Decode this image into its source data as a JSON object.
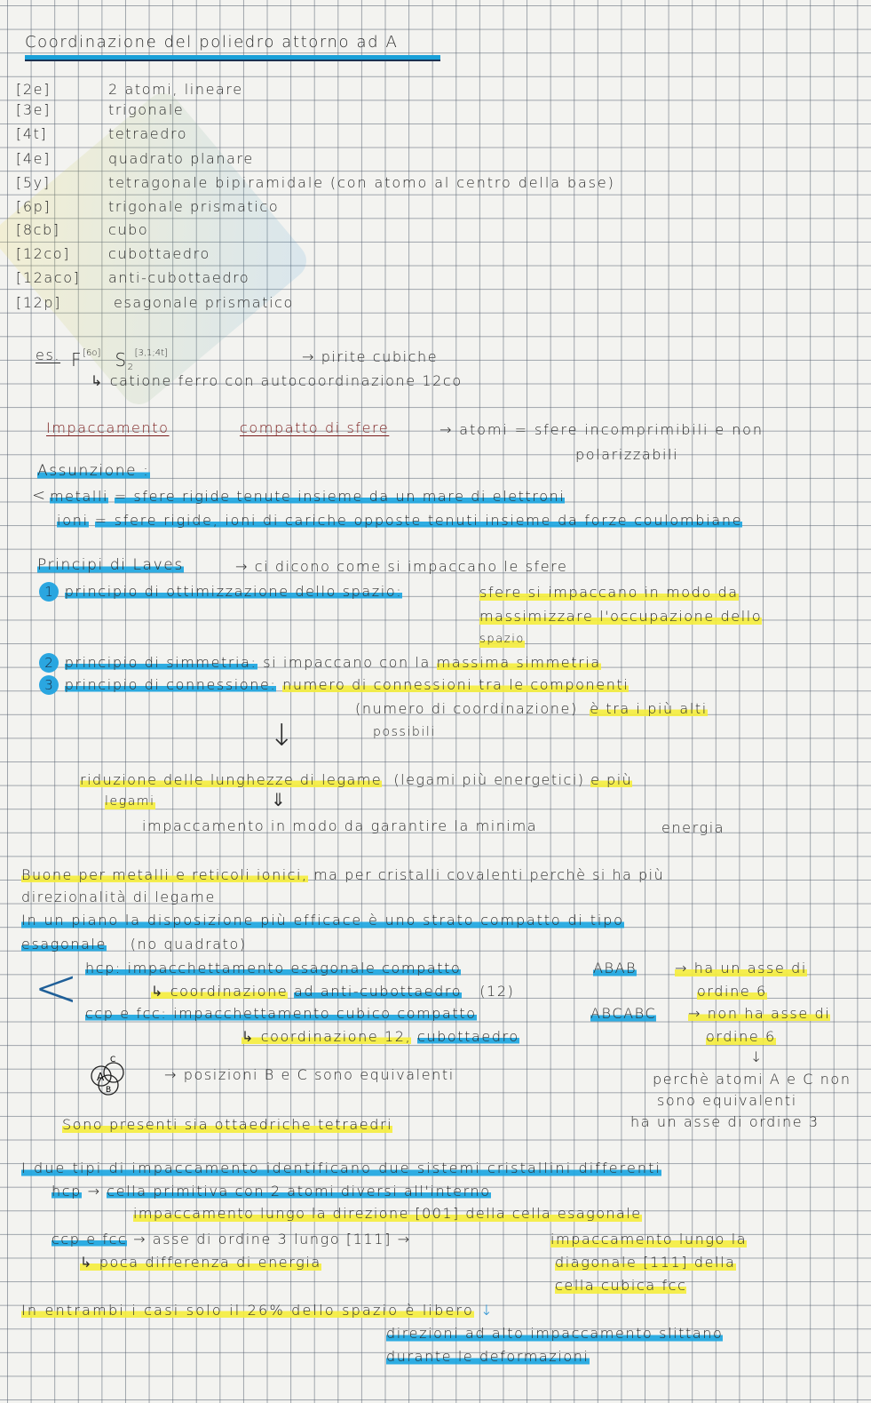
{
  "title": "Coordinazione del poliedro attorno ad A",
  "coordination": [
    {
      "code": "[2e]",
      "desc": "2 atomi, lineare"
    },
    {
      "code": "[3e]",
      "desc": "trigonale"
    },
    {
      "code": "[4t]",
      "desc": "tetraedro"
    },
    {
      "code": "[4e]",
      "desc": "quadrato planare"
    },
    {
      "code": "[5y]",
      "desc": "tetragonale bipiramidale (con atomo al centro della base)"
    },
    {
      "code": "[6p]",
      "desc": "trigonale prismatico"
    },
    {
      "code": "[8cb]",
      "desc": "cubo"
    },
    {
      "code": "[12co]",
      "desc": "cubottaedro"
    },
    {
      "code": "[12aco]",
      "desc": "anti-cubottaedro"
    },
    {
      "code": "[12p]",
      "desc": "esagonale prismatico"
    }
  ],
  "example": {
    "es": "es.",
    "F": "F",
    "F_sup": "[6o]",
    "S": "S",
    "S_sub": "2",
    "S_sup": "[3,1;4t]",
    "arrow": "→ pirite cubiche",
    "note": "↳ catione ferro con autocoordinazione 12co"
  },
  "packing": {
    "a": "Impaccamento",
    "b": "compatto di sfere",
    "c": "→ atomi = sfere incomprimibili e non",
    "d": "polarizzabili"
  },
  "assumption": {
    "title": "Assunzione :",
    "bracket": "<",
    "metalli": "metalli",
    "metalli_rest": "= sfere rigide tenute insieme da un mare di elettroni",
    "ioni": "ioni",
    "ioni_rest": "= sfere rigide, ioni di cariche opposte tenuti insieme da forze coulombiane"
  },
  "laves": {
    "title": "Principi di Laves",
    "intro": "→ ci dicono come si impaccano le sfere",
    "p1_num": "1",
    "p1": "principio di ottimizzazione dello spazio:",
    "p1_a": "sfere si impaccano in modo da",
    "p1_b": "massimizzare l'occupazione dello",
    "p1_c": "spazio",
    "p2_num": "2",
    "p2": "principio di simmetria:",
    "p2_a": "si impaccano con la",
    "p2_b": "massima simmetria",
    "p3_num": "3",
    "p3": "principio di connessione:",
    "p3_a": "numero di connessioni tra le componenti",
    "p3_b": "(numero di coordinazione)",
    "p3_c": "è tra i più alti",
    "p3_d": "possibili",
    "arrow": "↓",
    "r1": "riduzione delle lunghezze di legame",
    "r2": "(legami più energetici)",
    "r3": "e più",
    "r4": "legami",
    "darrow": "⇓",
    "r5": "impaccamento in modo da garantire la minima",
    "r6": "energia"
  },
  "body": {
    "l1a": "Buone per metalli e reticoli ionici,",
    "l1b": "ma per cristalli covalenti perchè si ha più",
    "l2": "direzionalità di legame",
    "l3": "In un piano la disposizione più efficace è uno strato compatto di tipo",
    "l4a": "esagonale",
    "l4b": "(no quadrato)",
    "bracket": "<",
    "hcp": "hcp",
    "hcp_a": ": impacchettamento esagonale compatto",
    "hcp_seq": "ABAB",
    "hcp_r": "→ ha un asse di",
    "hcp_c1": "↳ coordinazione",
    "hcp_c2": "ad anti-cubottaedro",
    "hcp_c3": "(12)",
    "hcp_r2": "ordine 6",
    "ccp": "ccp e fcc",
    "ccp_a": ": impacchettamento cubico compatto",
    "ccp_seq": "ABCABC",
    "ccp_r": "→ non ha asse di",
    "ccp_c1": "↳ coordinazione 12,",
    "ccp_c2": "cubottaedro",
    "ccp_r2": "ordine 6",
    "down": "↓",
    "diag_a": "A",
    "diag_b": "B",
    "diag_c": "C",
    "pos": "→ posizioni B e C sono equivalenti",
    "why1": "perchè atomi A e C non",
    "why2": "sono equivalenti",
    "why3": "ha un asse di ordine 3",
    "sites": "Sono presenti sia ottaedriche tetraedri",
    "two": "I due tipi di impaccamento identificano due sistemi cristallini differenti",
    "hcp2": "hcp",
    "hcp2_a": "→",
    "hcp2_b": "cella primitiva con 2 atomi diversi all'interno",
    "hcp2_c": "impaccamento lungo la direzione [001] della cella esagonale",
    "ccp2": "ccp e fcc",
    "ccp2_a": "→ asse di ordine 3 lungo [111] →",
    "ccp2_b": "impaccamento lungo la",
    "ccp2_c": "↳ poca differenza di energia",
    "ccp2_d": "diagonale [111] della",
    "ccp2_e": "cella cubica fcc",
    "both": "In entrambi i casi solo il 26% dello spazio è libero",
    "both_arrow": "↓",
    "slip1": "direzioni ad alto impaccamento slittano",
    "slip2": "durante le deformazioni"
  },
  "colors": {
    "blue_highlighter": "#19a5e1",
    "yellow_highlighter": "#f5ee3c",
    "red_ink": "#7a1d1d"
  }
}
